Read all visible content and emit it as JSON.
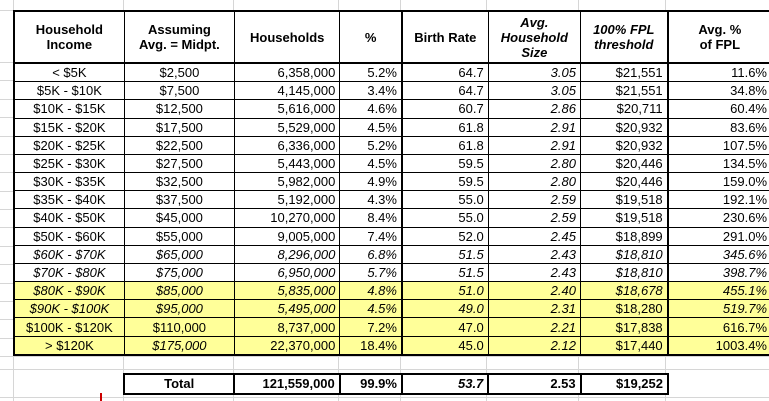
{
  "chart_data": {
    "type": "table",
    "title": "Households by income bracket with birth rate, household size and FPL statistics",
    "columns": [
      "Household\nIncome",
      "Assuming\nAvg. = Midpt.",
      "Households",
      "%",
      "Birth Rate",
      "Avg.\nHousehold\nSize",
      "100% FPL\nthreshold",
      "Avg. %\nof FPL"
    ],
    "column_italic": [
      0,
      0,
      0,
      0,
      0,
      1,
      1,
      0
    ],
    "column_align": [
      "center",
      "center",
      "right",
      "right",
      "right",
      "right",
      "right",
      "right"
    ],
    "highlight_color": "#ffff99",
    "rows": [
      {
        "cells": [
          "< $5K",
          "$2,500",
          "6,358,000",
          "5.2%",
          "64.7",
          "3.05",
          "$21,551",
          "11.6%"
        ],
        "italic": [
          0,
          0,
          0,
          0,
          0,
          1,
          0,
          0
        ],
        "highlight": false
      },
      {
        "cells": [
          "$5K - $10K",
          "$7,500",
          "4,145,000",
          "3.4%",
          "64.7",
          "3.05",
          "$21,551",
          "34.8%"
        ],
        "italic": [
          0,
          0,
          0,
          0,
          0,
          1,
          0,
          0
        ],
        "highlight": false
      },
      {
        "cells": [
          "$10K - $15K",
          "$12,500",
          "5,616,000",
          "4.6%",
          "60.7",
          "2.86",
          "$20,711",
          "60.4%"
        ],
        "italic": [
          0,
          0,
          0,
          0,
          0,
          1,
          0,
          0
        ],
        "highlight": false
      },
      {
        "cells": [
          "$15K - $20K",
          "$17,500",
          "5,529,000",
          "4.5%",
          "61.8",
          "2.91",
          "$20,932",
          "83.6%"
        ],
        "italic": [
          0,
          0,
          0,
          0,
          0,
          1,
          0,
          0
        ],
        "highlight": false
      },
      {
        "cells": [
          "$20K - $25K",
          "$22,500",
          "6,336,000",
          "5.2%",
          "61.8",
          "2.91",
          "$20,932",
          "107.5%"
        ],
        "italic": [
          0,
          0,
          0,
          0,
          0,
          1,
          0,
          0
        ],
        "highlight": false
      },
      {
        "cells": [
          "$25K - $30K",
          "$27,500",
          "5,443,000",
          "4.5%",
          "59.5",
          "2.80",
          "$20,446",
          "134.5%"
        ],
        "italic": [
          0,
          0,
          0,
          0,
          0,
          1,
          0,
          0
        ],
        "highlight": false
      },
      {
        "cells": [
          "$30K - $35K",
          "$32,500",
          "5,982,000",
          "4.9%",
          "59.5",
          "2.80",
          "$20,446",
          "159.0%"
        ],
        "italic": [
          0,
          0,
          0,
          0,
          0,
          1,
          0,
          0
        ],
        "highlight": false
      },
      {
        "cells": [
          "$35K - $40K",
          "$37,500",
          "5,192,000",
          "4.3%",
          "55.0",
          "2.59",
          "$19,518",
          "192.1%"
        ],
        "italic": [
          0,
          0,
          0,
          0,
          0,
          1,
          0,
          0
        ],
        "highlight": false
      },
      {
        "cells": [
          "$40K - $50K",
          "$45,000",
          "10,270,000",
          "8.4%",
          "55.0",
          "2.59",
          "$19,518",
          "230.6%"
        ],
        "italic": [
          0,
          0,
          0,
          0,
          0,
          1,
          0,
          0
        ],
        "highlight": false
      },
      {
        "cells": [
          "$50K - $60K",
          "$55,000",
          "9,005,000",
          "7.4%",
          "52.0",
          "2.45",
          "$18,899",
          "291.0%"
        ],
        "italic": [
          0,
          0,
          0,
          0,
          0,
          1,
          0,
          0
        ],
        "highlight": false
      },
      {
        "cells": [
          "$60K - $70K",
          "$65,000",
          "8,296,000",
          "6.8%",
          "51.5",
          "2.43",
          "$18,810",
          "345.6%"
        ],
        "italic": [
          1,
          1,
          1,
          1,
          1,
          1,
          1,
          1
        ],
        "highlight": false
      },
      {
        "cells": [
          "$70K - $80K",
          "$75,000",
          "6,950,000",
          "5.7%",
          "51.5",
          "2.43",
          "$18,810",
          "398.7%"
        ],
        "italic": [
          1,
          1,
          1,
          1,
          1,
          1,
          1,
          1
        ],
        "highlight": false
      },
      {
        "cells": [
          "$80K - $90K",
          "$85,000",
          "5,835,000",
          "4.8%",
          "51.0",
          "2.40",
          "$18,678",
          "455.1%"
        ],
        "italic": [
          1,
          1,
          1,
          1,
          1,
          1,
          1,
          1
        ],
        "highlight": true
      },
      {
        "cells": [
          "$90K - $100K",
          "$95,000",
          "5,495,000",
          "4.5%",
          "49.0",
          "2.31",
          "$18,280",
          "519.7%"
        ],
        "italic": [
          1,
          1,
          1,
          1,
          1,
          1,
          0,
          1
        ],
        "highlight": true
      },
      {
        "cells": [
          "$100K - $120K",
          "$110,000",
          "8,737,000",
          "7.2%",
          "47.0",
          "2.21",
          "$17,838",
          "616.7%"
        ],
        "italic": [
          0,
          0,
          0,
          0,
          0,
          1,
          0,
          0
        ],
        "highlight": true
      },
      {
        "cells": [
          "> $120K",
          "$175,000",
          "22,370,000",
          "18.4%",
          "45.0",
          "2.12",
          "$17,440",
          "1003.4%"
        ],
        "italic": [
          0,
          1,
          0,
          0,
          0,
          1,
          0,
          0
        ],
        "highlight": true
      }
    ],
    "total": {
      "label": "Total",
      "values": [
        "121,559,000",
        "99.9%",
        "53.7",
        "2.53",
        "$19,252"
      ],
      "italic": [
        0,
        0,
        1,
        0,
        0
      ]
    }
  }
}
